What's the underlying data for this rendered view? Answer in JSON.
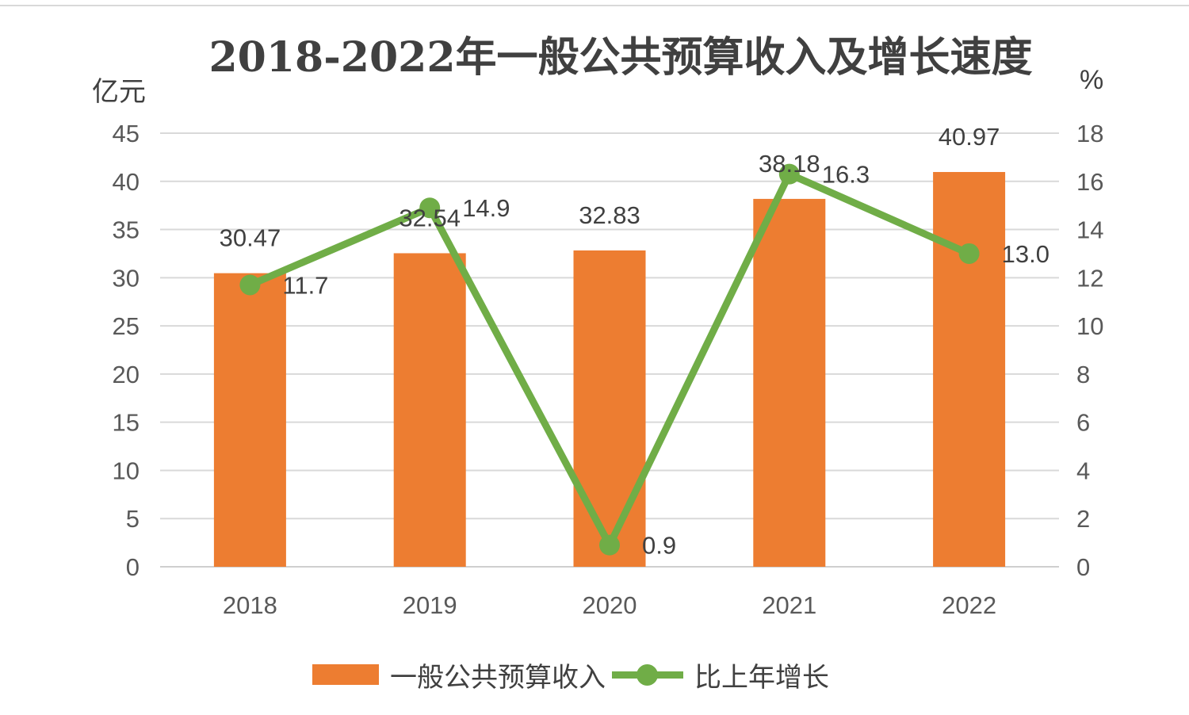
{
  "chart_data": {
    "type": "bar+line",
    "title": "2018-2022年一般公共预算收入及增长速度",
    "y_left_unit": "亿元",
    "y_right_unit": "%",
    "categories": [
      "2018",
      "2019",
      "2020",
      "2021",
      "2022"
    ],
    "y_left_ticks": [
      "0",
      "5",
      "10",
      "15",
      "20",
      "25",
      "30",
      "35",
      "40",
      "45"
    ],
    "y_right_ticks": [
      "0",
      "2",
      "4",
      "6",
      "8",
      "10",
      "12",
      "14",
      "16",
      "18"
    ],
    "ylim_left": [
      0,
      45
    ],
    "ylim_right": [
      0,
      18
    ],
    "grid": true,
    "legend_position": "bottom",
    "series": [
      {
        "name": "一般公共预算收入",
        "type": "bar",
        "axis": "left",
        "color": "#ed7d31",
        "values": [
          30.47,
          32.54,
          32.83,
          38.18,
          40.97
        ],
        "labels": [
          "30.47",
          "32.54",
          "32.83",
          "38.18",
          "40.97"
        ]
      },
      {
        "name": "比上年增长",
        "type": "line",
        "axis": "right",
        "color": "#70ad47",
        "values": [
          11.7,
          14.9,
          0.9,
          16.3,
          13.0
        ],
        "labels": [
          "11.7",
          "14.9",
          "0.9",
          "16.3",
          "13.0"
        ]
      }
    ]
  }
}
